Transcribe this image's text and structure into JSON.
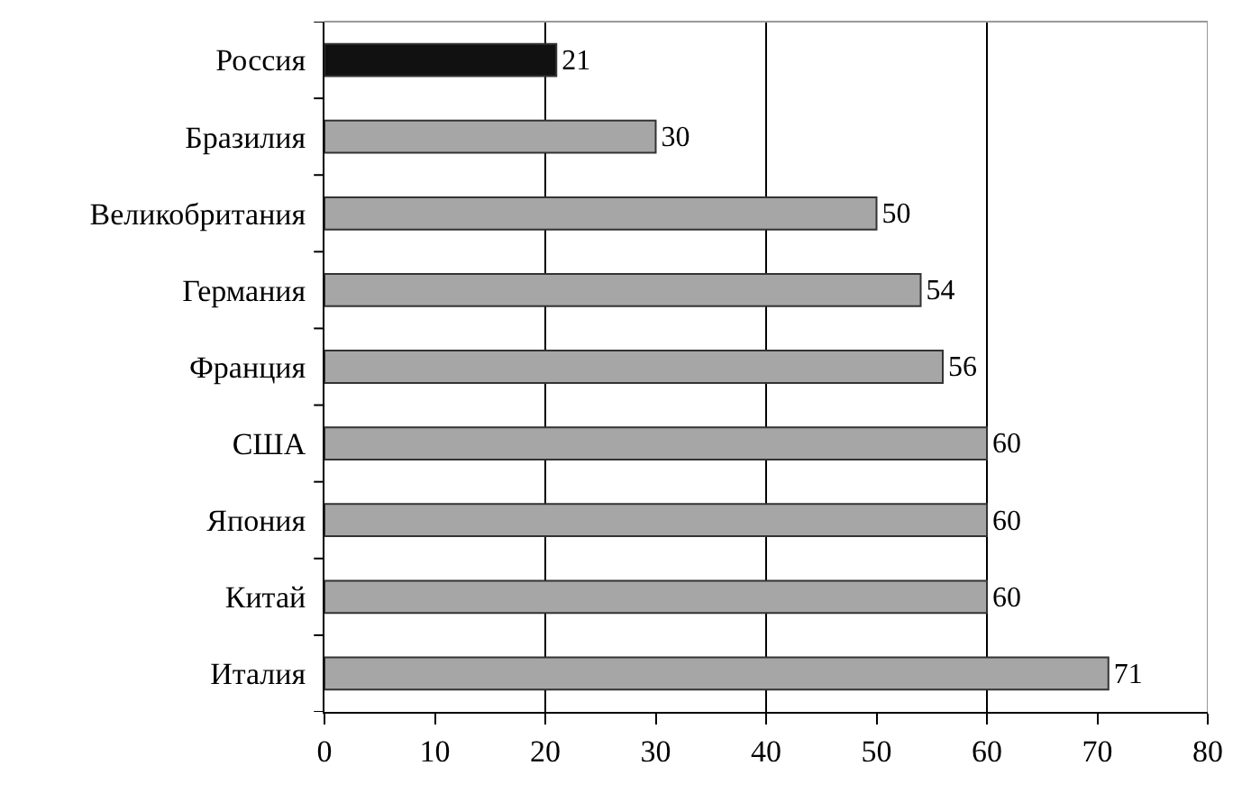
{
  "chart_data": {
    "type": "bar",
    "orientation": "horizontal",
    "categories": [
      "Россия",
      "Бразилия",
      "Великобритания",
      "Германия",
      "Франция",
      "США",
      "Япония",
      "Китай",
      "Италия"
    ],
    "values": [
      21,
      30,
      50,
      54,
      56,
      60,
      60,
      60,
      71
    ],
    "colors": [
      "#111111",
      "#a6a6a6",
      "#a6a6a6",
      "#a6a6a6",
      "#a6a6a6",
      "#a6a6a6",
      "#a6a6a6",
      "#a6a6a6",
      "#a6a6a6"
    ],
    "xlim": [
      0,
      80
    ],
    "xticks": [
      0,
      10,
      20,
      30,
      40,
      50,
      60,
      70,
      80
    ],
    "grid": "x",
    "data_labels": true
  }
}
